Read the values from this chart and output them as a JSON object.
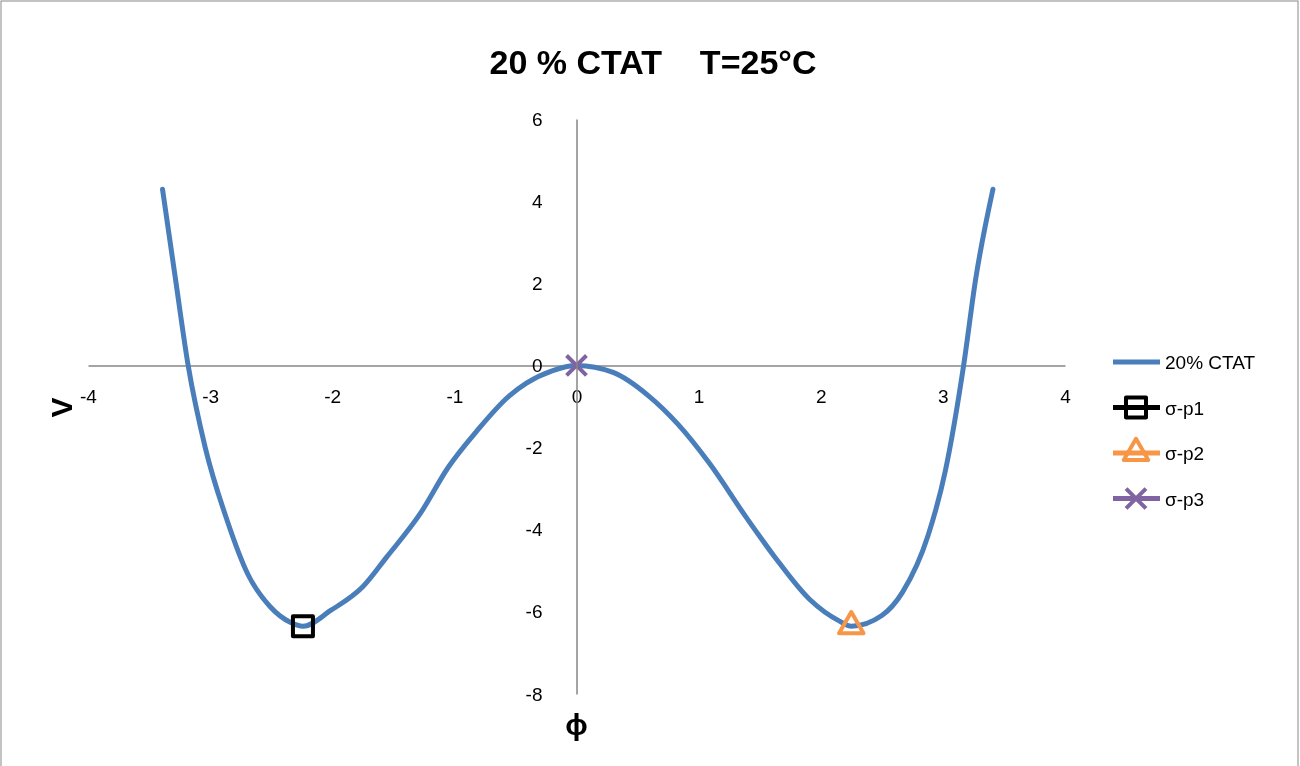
{
  "chart_data": {
    "type": "scatter",
    "title": "20 % CTAT    T=25°C",
    "xlabel": "ϕ",
    "ylabel": "V",
    "xlim": [
      -4,
      4
    ],
    "xticks": [
      -4,
      -3,
      -2,
      -1,
      0,
      1,
      2,
      3,
      4
    ],
    "ylim": [
      -8,
      6
    ],
    "yticks": [
      -8,
      -6,
      -4,
      -2,
      0,
      2,
      4,
      6
    ],
    "grid": false,
    "legend": "right",
    "series": [
      {
        "name": "20% CTAT",
        "type": "line",
        "color": "#4a7ebb",
        "marker": "none",
        "line_style": "solid",
        "x": [
          -3.39,
          -3.285,
          -3.18,
          -3.04,
          -2.86,
          -2.69,
          -2.51,
          -2.34,
          -2.24,
          -2.01,
          -1.75,
          -1.55,
          -1.28,
          -1.05,
          -0.82,
          -0.55,
          -0.41,
          -0.2,
          0,
          0.3,
          0.59,
          0.83,
          1.09,
          1.39,
          1.62,
          1.91,
          2.15,
          2.25,
          2.5,
          2.67,
          2.88,
          3.02,
          3.17,
          3.27,
          3.41
        ],
        "values": [
          4.29,
          2.13,
          0,
          -2.0,
          -3.78,
          -5.09,
          -5.87,
          -6.26,
          -6.35,
          -5.96,
          -5.39,
          -4.65,
          -3.61,
          -2.48,
          -1.61,
          -0.74,
          -0.43,
          -0.13,
          0,
          -0.17,
          -0.74,
          -1.43,
          -2.39,
          -3.7,
          -4.65,
          -5.7,
          -6.22,
          -6.35,
          -6.09,
          -5.52,
          -4.13,
          -2.57,
          0,
          2.13,
          4.29
        ]
      },
      {
        "name": "σ-p1",
        "color": "#000000",
        "marker": "square",
        "x": [
          -2.24
        ],
        "values": [
          -6.35
        ]
      },
      {
        "name": "σ-p2",
        "color": "#f79646",
        "marker": "triangle",
        "x": [
          2.25
        ],
        "values": [
          -6.35
        ]
      },
      {
        "name": "σ-p3",
        "color": "#8064a2",
        "marker": "cross",
        "x": [
          0
        ],
        "values": [
          0
        ]
      }
    ]
  }
}
